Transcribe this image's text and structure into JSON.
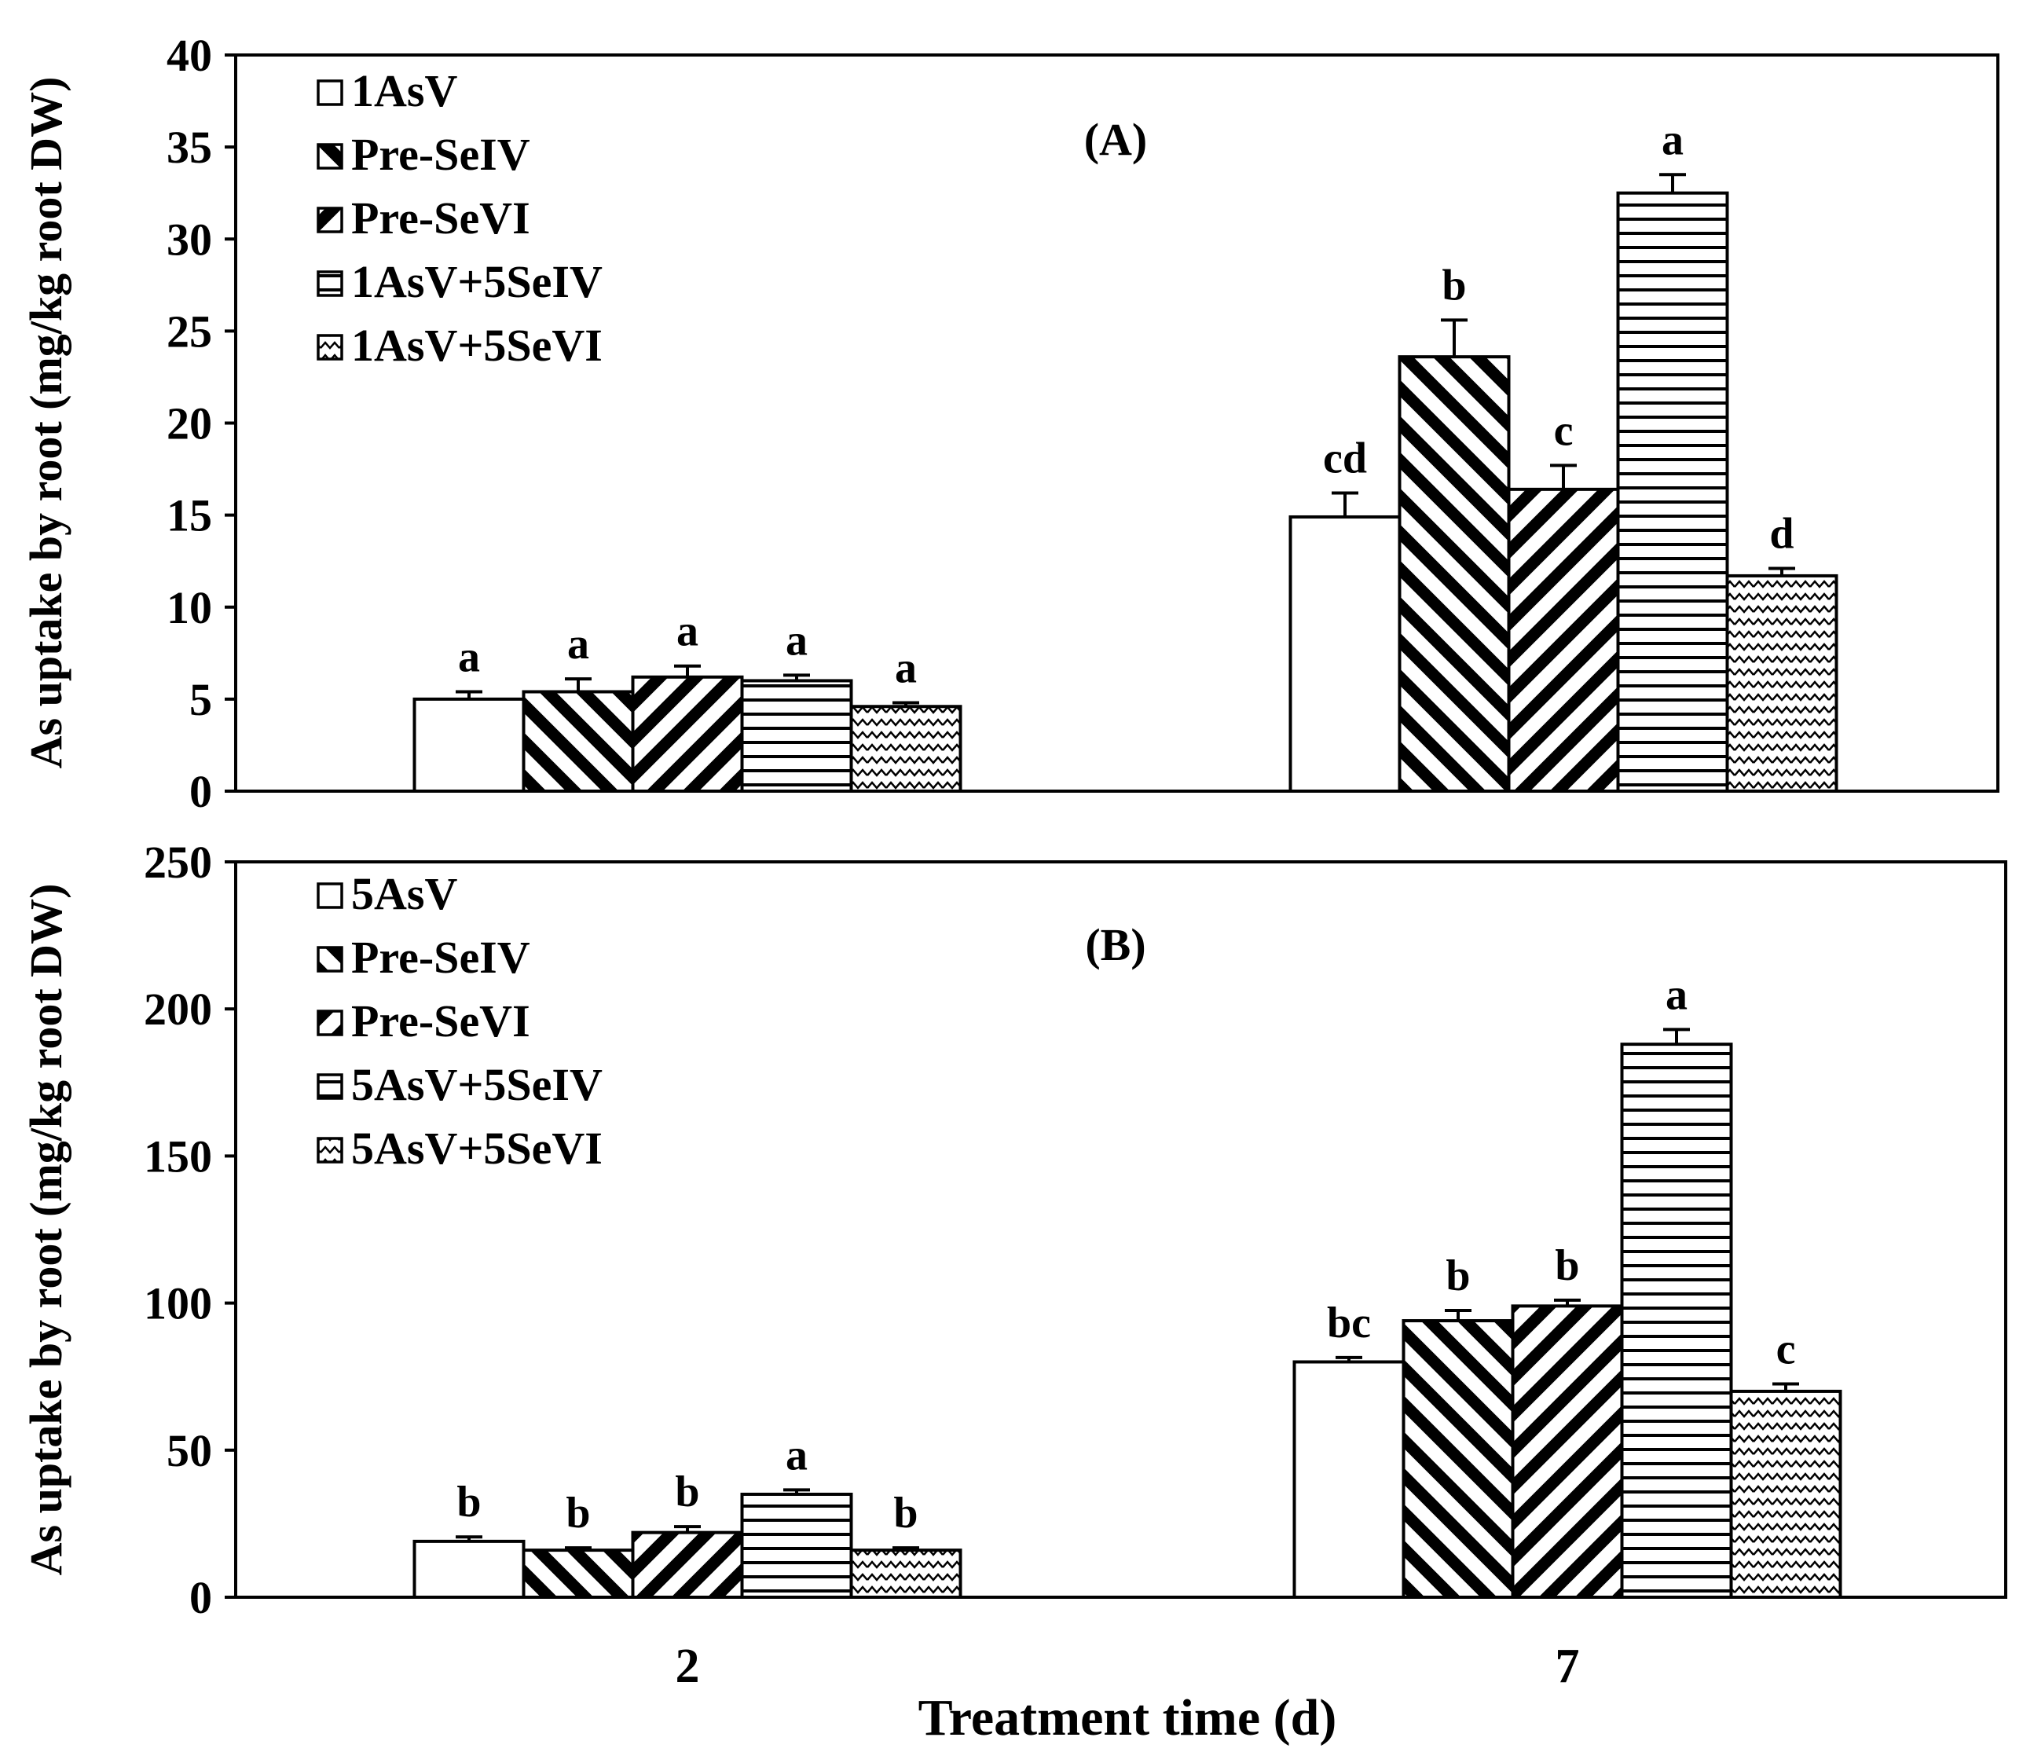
{
  "chart_data": [
    {
      "type": "bar",
      "panel_label": "(A)",
      "title": "",
      "ylabel": "As uptake by root (mg/kg root DW)",
      "xlabel": "Treatment time (d)",
      "categories": [
        "2",
        "7"
      ],
      "ylim": [
        0,
        40
      ],
      "yticks": [
        0,
        5,
        10,
        15,
        20,
        25,
        30,
        35,
        40
      ],
      "grid": false,
      "legend_position": "top-left",
      "series": [
        {
          "name": "1AsV",
          "pattern": "blank",
          "values": [
            5.0,
            14.9
          ],
          "errors": [
            0.4,
            1.3
          ],
          "letters": [
            "a",
            "cd"
          ]
        },
        {
          "name": "Pre-SeIV",
          "pattern": "diag-down",
          "values": [
            5.4,
            23.6
          ],
          "errors": [
            0.7,
            2.0
          ],
          "letters": [
            "a",
            "b"
          ]
        },
        {
          "name": "Pre-SeVI",
          "pattern": "diag-up",
          "values": [
            6.2,
            16.4
          ],
          "errors": [
            0.6,
            1.3
          ],
          "letters": [
            "a",
            "c"
          ]
        },
        {
          "name": "1AsV+5SeIV",
          "pattern": "horizontal",
          "values": [
            6.0,
            32.5
          ],
          "errors": [
            0.3,
            1.0
          ],
          "letters": [
            "a",
            "a"
          ]
        },
        {
          "name": "1AsV+5SeVI",
          "pattern": "wave",
          "values": [
            4.6,
            11.7
          ],
          "errors": [
            0.2,
            0.4
          ],
          "letters": [
            "a",
            "d"
          ]
        }
      ]
    },
    {
      "type": "bar",
      "panel_label": "(B)",
      "title": "",
      "ylabel": "As uptake by root (mg/kg root DW)",
      "xlabel": "Treatment time (d)",
      "categories": [
        "2",
        "7"
      ],
      "ylim": [
        0,
        250
      ],
      "yticks": [
        0,
        50,
        100,
        150,
        200,
        250
      ],
      "grid": false,
      "legend_position": "top-left",
      "series": [
        {
          "name": "5AsV",
          "pattern": "blank",
          "values": [
            19,
            80
          ],
          "errors": [
            1.5,
            1.5
          ],
          "letters": [
            "b",
            "bc"
          ]
        },
        {
          "name": "Pre-SeIV",
          "pattern": "diag-down",
          "values": [
            16,
            94
          ],
          "errors": [
            0.8,
            3.5
          ],
          "letters": [
            "b",
            "b"
          ]
        },
        {
          "name": "Pre-SeVI",
          "pattern": "diag-up",
          "values": [
            22,
            99
          ],
          "errors": [
            2.0,
            2.0
          ],
          "letters": [
            "b",
            "b"
          ]
        },
        {
          "name": "5AsV+5SeIV",
          "pattern": "horizontal",
          "values": [
            35,
            188
          ],
          "errors": [
            1.5,
            5.0
          ],
          "letters": [
            "a",
            "a"
          ]
        },
        {
          "name": "5AsV+5SeVI",
          "pattern": "wave",
          "values": [
            16,
            70
          ],
          "errors": [
            0.8,
            2.5
          ],
          "letters": [
            "b",
            "c"
          ]
        }
      ]
    }
  ]
}
